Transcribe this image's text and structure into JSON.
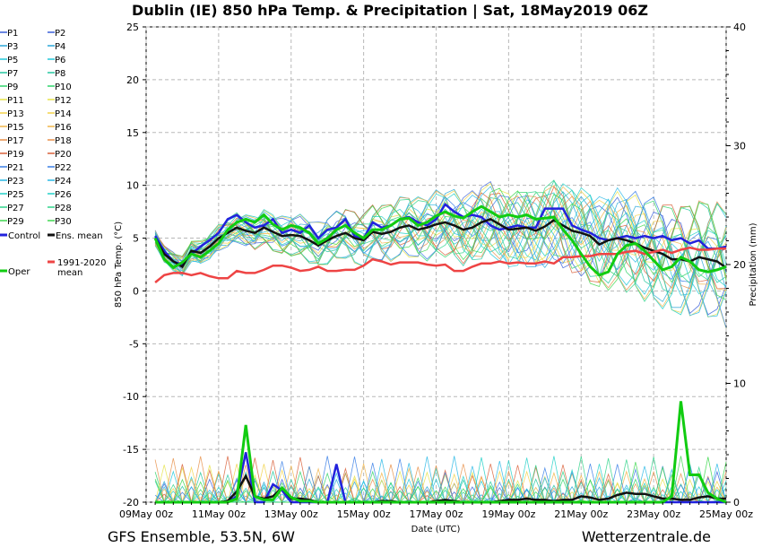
{
  "title": "Dublin  (IE)  850 hPa Temp. & Precipitation | Sat, 18May2019 06Z",
  "footer_left": "GFS Ensemble, 53.5N, 6W",
  "footer_right": "Wetterzentrale.de",
  "chart_data": {
    "type": "line",
    "title": "Dublin  (IE)  850 hPa Temp. & Precipitation | Sat, 18May2019 06Z",
    "xlabel": "Date (UTC)",
    "ylabel": "850 hPa Temp. (°C)",
    "y2label": "Precipitation (mm)",
    "ylim": [
      -20,
      25
    ],
    "y2lim": [
      0,
      40
    ],
    "yticks": [
      "25",
      "20",
      "15",
      "10",
      "5",
      "0",
      "-5",
      "-10",
      "-15",
      "-20"
    ],
    "y2ticks": [
      "40",
      "30",
      "20",
      "10",
      "0"
    ],
    "xticks": [
      "09May 00z",
      "11May 00z",
      "13May 00z",
      "15May 00z",
      "17May 00z",
      "19May 00z",
      "21May 00z",
      "23May 00z",
      "25May 00z"
    ],
    "x_hours": [
      6,
      12,
      18,
      24,
      30,
      36,
      42,
      48,
      54,
      60,
      66,
      72,
      78,
      84,
      90,
      96,
      102,
      108,
      114,
      120,
      126,
      132,
      138,
      144,
      150,
      156,
      162,
      168,
      174,
      180,
      186,
      192,
      198,
      204,
      210,
      216,
      222,
      228,
      234,
      240,
      246,
      252,
      258,
      264,
      270,
      276,
      282,
      288,
      294,
      300,
      306,
      312,
      318,
      324,
      330,
      336,
      342,
      348,
      354,
      360,
      366,
      372,
      378,
      384
    ],
    "grid": true,
    "legend_placement": "left",
    "legend": [
      "P1",
      "P2",
      "P3",
      "P4",
      "P5",
      "P6",
      "P7",
      "P8",
      "P9",
      "P10",
      "P11",
      "P12",
      "P13",
      "P14",
      "P15",
      "P16",
      "P17",
      "P18",
      "P19",
      "P20",
      "P21",
      "P22",
      "P23",
      "P24",
      "P25",
      "P26",
      "P27",
      "P28",
      "P29",
      "P30",
      "Control",
      "Ens. mean",
      "1991-2020 mean",
      "Oper"
    ],
    "member_colors": [
      "#3a5fd9",
      "#3a5fd9",
      "#2aa8d8",
      "#2aa8d8",
      "#22c7d9",
      "#22c7d9",
      "#25c7a0",
      "#25c7a0",
      "#30d46a",
      "#30d46a",
      "#e6e34a",
      "#e6e34a",
      "#f2d24a",
      "#f2d24a",
      "#f0b54a",
      "#f0b54a",
      "#e8904a",
      "#e8904a",
      "#d9603a",
      "#d9603a",
      "#3a7fe6",
      "#3a7fe6",
      "#2ab8e6",
      "#2ab8e6",
      "#22d0c8",
      "#22d0c8",
      "#30d48a",
      "#30d48a",
      "#40d850",
      "#40d850"
    ],
    "series": [
      {
        "name": "Control",
        "color": "#2222dd",
        "values": [
          5.2,
          3.8,
          2.8,
          2.5,
          3.5,
          4.2,
          4.8,
          5.5,
          6.8,
          7.2,
          6.5,
          6.0,
          6.2,
          6.8,
          5.5,
          5.8,
          5.5,
          6.2,
          5.0,
          5.8,
          6.0,
          6.8,
          5.2,
          5.0,
          6.5,
          6.0,
          6.2,
          6.8,
          7.0,
          6.5,
          6.2,
          6.8,
          8.2,
          7.5,
          7.0,
          7.2,
          7.0,
          6.2,
          5.8,
          6.0,
          6.2,
          6.0,
          6.0,
          7.8,
          7.8,
          7.8,
          6.2,
          5.8,
          5.5,
          5.0,
          4.8,
          5.0,
          5.2,
          5.0,
          5.2,
          5.0,
          5.2,
          4.8,
          5.0,
          4.5,
          4.8,
          4.0,
          4.0,
          4.2
        ]
      },
      {
        "name": "Ens. mean",
        "color": "#111111",
        "values": [
          5.0,
          3.5,
          2.8,
          2.3,
          3.8,
          3.6,
          4.2,
          5.0,
          5.5,
          6.0,
          5.7,
          5.5,
          6.0,
          5.6,
          5.2,
          5.3,
          5.2,
          4.8,
          4.3,
          4.8,
          5.2,
          5.5,
          5.0,
          4.8,
          5.6,
          5.4,
          5.6,
          6.0,
          6.2,
          5.8,
          6.0,
          6.3,
          6.5,
          6.2,
          5.8,
          6.0,
          6.5,
          6.8,
          6.3,
          5.8,
          5.9,
          6.0,
          5.7,
          6.1,
          6.7,
          6.2,
          5.7,
          5.5,
          5.2,
          4.4,
          4.8,
          5.0,
          4.8,
          4.5,
          4.1,
          3.8,
          3.5,
          3.0,
          3.0,
          2.8,
          3.2,
          3.0,
          2.8,
          2.2
        ]
      },
      {
        "name": "1991-2020 mean",
        "color": "#ee4444",
        "values": [
          0.8,
          1.5,
          1.7,
          1.7,
          1.5,
          1.7,
          1.4,
          1.2,
          1.2,
          1.9,
          1.7,
          1.7,
          2.0,
          2.4,
          2.4,
          2.2,
          1.9,
          2.0,
          2.3,
          1.9,
          1.9,
          2.0,
          2.0,
          2.4,
          3.0,
          2.8,
          2.5,
          2.7,
          2.7,
          2.7,
          2.5,
          2.4,
          2.5,
          1.9,
          1.9,
          2.3,
          2.6,
          2.6,
          2.8,
          2.6,
          2.7,
          2.6,
          2.6,
          2.8,
          2.6,
          3.2,
          3.2,
          3.3,
          3.3,
          3.5,
          3.5,
          3.5,
          3.7,
          3.8,
          3.5,
          3.7,
          3.9,
          3.6,
          3.9,
          4.1,
          3.9,
          3.9,
          4.0,
          4.0
        ]
      },
      {
        "name": "Oper",
        "color": "#11cc11",
        "values": [
          5.0,
          3.0,
          2.2,
          2.7,
          3.5,
          3.2,
          3.8,
          4.5,
          5.8,
          6.5,
          6.8,
          6.5,
          7.2,
          6.3,
          5.8,
          6.2,
          6.0,
          5.5,
          4.5,
          5.0,
          5.8,
          6.2,
          5.5,
          5.0,
          5.8,
          5.8,
          6.2,
          6.8,
          6.9,
          6.2,
          6.5,
          7.1,
          7.5,
          7.1,
          6.9,
          7.5,
          8.0,
          7.5,
          7.0,
          7.2,
          7.0,
          7.2,
          6.8,
          6.9,
          7.0,
          5.8,
          4.8,
          3.5,
          2.3,
          1.5,
          1.8,
          3.5,
          4.3,
          4.5,
          3.8,
          2.9,
          2.0,
          2.3,
          3.2,
          2.8,
          2.0,
          1.8,
          2.0,
          2.3
        ]
      }
    ],
    "precip_series": [
      {
        "name": "Control",
        "color": "#2222dd",
        "values": [
          0,
          0,
          0,
          0,
          0,
          0,
          0,
          0,
          0,
          0.5,
          4.2,
          0,
          0,
          1.5,
          1.0,
          0,
          0,
          0,
          0,
          0,
          3.2,
          0,
          0,
          0,
          0,
          0,
          0,
          0,
          0,
          0,
          0,
          0,
          0,
          0,
          0,
          0,
          0,
          0,
          0,
          0,
          0,
          0,
          0,
          0,
          0,
          0,
          0,
          0,
          0,
          0,
          0,
          0,
          0,
          0,
          0,
          0,
          0,
          0,
          0,
          0,
          0,
          0,
          0,
          0
        ]
      },
      {
        "name": "Ens. mean",
        "color": "#111111",
        "values": [
          0,
          0,
          0,
          0,
          0,
          0,
          0,
          0,
          0.1,
          0.9,
          2.2,
          0.5,
          0.3,
          0.5,
          1.2,
          0.3,
          0.3,
          0.2,
          0,
          0,
          0,
          0,
          0,
          0,
          0,
          0.1,
          0.1,
          0,
          0,
          0,
          0,
          0.1,
          0.2,
          0.1,
          0,
          0,
          0,
          0,
          0.1,
          0.2,
          0.2,
          0.3,
          0.2,
          0.2,
          0.1,
          0.2,
          0.2,
          0.5,
          0.4,
          0.2,
          0.3,
          0.6,
          0.8,
          0.7,
          0.7,
          0.5,
          0.3,
          0.3,
          0.2,
          0.2,
          0.4,
          0.5,
          0.3,
          0.3
        ]
      },
      {
        "name": "Oper",
        "color": "#11cc11",
        "values": [
          0,
          0,
          0,
          0,
          0,
          0,
          0,
          0,
          0,
          0.3,
          6.5,
          0.5,
          0.2,
          0.2,
          1.2,
          0.4,
          0.1,
          0.1,
          0,
          0,
          0,
          0,
          0,
          0,
          0,
          0,
          0,
          0,
          0,
          0,
          0,
          0,
          0,
          0,
          0,
          0,
          0,
          0,
          0,
          0,
          0,
          0,
          0,
          0,
          0,
          0,
          0,
          0,
          0,
          0,
          0,
          0,
          0,
          0,
          0,
          0,
          0,
          0.5,
          8.5,
          2.3,
          2.3,
          0.8,
          0.3,
          0
        ]
      }
    ]
  }
}
